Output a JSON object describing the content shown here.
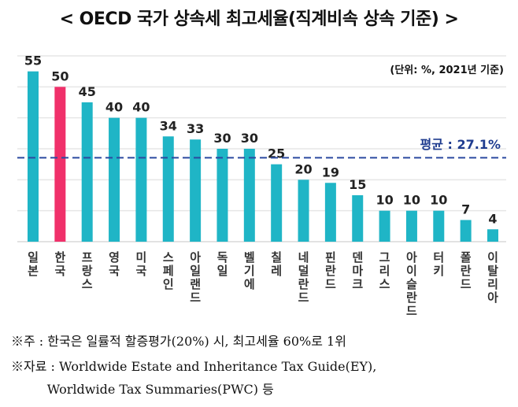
{
  "title": "< OECD 국가 상속세 최고세율(직계비속 상속 기준) >",
  "unit_note": "(단위: %, 2021년 기준)",
  "chart_data": {
    "type": "bar",
    "title": "OECD 국가 상속세 최고세율(직계비속 상속 기준)",
    "categories": [
      "일본",
      "한국",
      "프랑스",
      "영국",
      "미국",
      "스페인",
      "아일랜드",
      "독일",
      "벨기에",
      "칠레",
      "네덜란드",
      "핀란드",
      "덴마크",
      "그리스",
      "아이슬란드",
      "터키",
      "폴란드",
      "이탈리아"
    ],
    "values": [
      55,
      50,
      45,
      40,
      40,
      34,
      33,
      30,
      30,
      25,
      20,
      19,
      15,
      10,
      10,
      10,
      7,
      4
    ],
    "highlight": "한국",
    "colors": {
      "bar": "#1fb5c6",
      "highlight": "#f0306a",
      "average": "#2b4aa0"
    },
    "average": {
      "value": 27.1,
      "label": "평균 : 27.1%"
    },
    "ylim": [
      0,
      60
    ],
    "grid": true,
    "y_axis_tick_labels_shown": false
  },
  "notes": [
    "※주 : 한국은 일률적 할증평가(20%) 시, 최고세율 60%로 1위",
    "※자료 : Worldwide Estate and Inheritance Tax Guide(EY),",
    "         Worldwide Tax Summaries(PWC) 등"
  ]
}
